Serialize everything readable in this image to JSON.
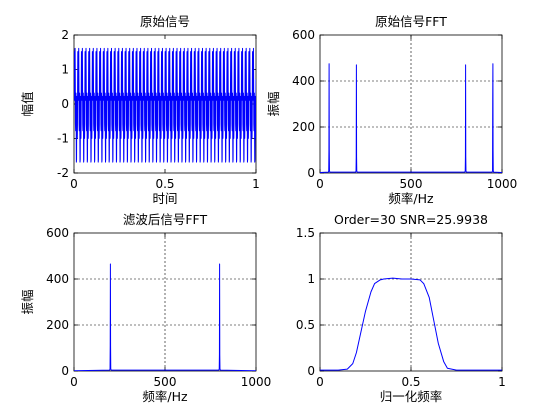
{
  "figure": {
    "background": "#ffffff",
    "line_color": "#0000ff"
  },
  "chart_data": [
    {
      "type": "line",
      "title": "原始信号",
      "xlabel": "时间",
      "ylabel": "幅值",
      "xlim": [
        0,
        1
      ],
      "ylim": [
        -2,
        2
      ],
      "xticks": [
        0,
        0.5,
        1
      ],
      "xtick_labels": [
        "0",
        "0.5",
        "1"
      ],
      "yticks": [
        -2,
        -1,
        0,
        1,
        2
      ],
      "ytick_labels": [
        "-2",
        "-1",
        "0",
        "1",
        "2"
      ],
      "grid": false,
      "signal": {
        "description_components": [
          {
            "frequency_hz": 50,
            "amplitude": 1
          },
          {
            "frequency_hz": 200,
            "amplitude": 1
          }
        ],
        "sample_rate_hz": 1000,
        "duration_s": 1
      }
    },
    {
      "type": "line",
      "title": "原始信号FFT",
      "xlabel": "频率/Hz",
      "ylabel": "振幅",
      "xlim": [
        0,
        1000
      ],
      "ylim": [
        0,
        600
      ],
      "xticks": [
        0,
        500,
        1000
      ],
      "xtick_labels": [
        "0",
        "500",
        "1000"
      ],
      "yticks": [
        0,
        200,
        400,
        600
      ],
      "ytick_labels": [
        "0",
        "200",
        "400",
        "600"
      ],
      "grid": true,
      "x": [
        0,
        46,
        48,
        49,
        50,
        51,
        52,
        54,
        196,
        198,
        199,
        200,
        201,
        202,
        204,
        796,
        798,
        799,
        800,
        801,
        802,
        804,
        946,
        948,
        949,
        950,
        951,
        952,
        954,
        1000
      ],
      "y": [
        2,
        4,
        10,
        100,
        475,
        100,
        10,
        4,
        4,
        10,
        70,
        470,
        70,
        10,
        4,
        4,
        10,
        70,
        470,
        70,
        10,
        4,
        4,
        10,
        320,
        475,
        100,
        10,
        4,
        2
      ]
    },
    {
      "type": "line",
      "title": "滤波后信号FFT",
      "xlabel": "频率/Hz",
      "ylabel": "振幅",
      "xlim": [
        0,
        1000
      ],
      "ylim": [
        0,
        600
      ],
      "xticks": [
        0,
        500,
        1000
      ],
      "xtick_labels": [
        "0",
        "500",
        "1000"
      ],
      "yticks": [
        0,
        200,
        400,
        600
      ],
      "ytick_labels": [
        "0",
        "200",
        "400",
        "600"
      ],
      "grid": true,
      "x": [
        0,
        196,
        198,
        199,
        200,
        201,
        202,
        204,
        796,
        798,
        799,
        800,
        801,
        802,
        804,
        1000
      ],
      "y": [
        1,
        4,
        10,
        110,
        465,
        110,
        10,
        4,
        4,
        10,
        70,
        465,
        70,
        10,
        4,
        1
      ]
    },
    {
      "type": "line",
      "title": "Order=30 SNR=25.9938",
      "xlabel": "归一化频率",
      "ylabel": "",
      "xlim": [
        0,
        1
      ],
      "ylim": [
        0,
        1.5
      ],
      "xticks": [
        0,
        0.5,
        1
      ],
      "xtick_labels": [
        "0",
        "0.5",
        "1"
      ],
      "yticks": [
        0,
        0.5,
        1,
        1.5
      ],
      "ytick_labels": [
        "0",
        "0.5",
        "1",
        "1.5"
      ],
      "grid": true,
      "x": [
        0,
        0.05,
        0.1,
        0.15,
        0.18,
        0.2,
        0.22,
        0.25,
        0.28,
        0.3,
        0.33,
        0.35,
        0.4,
        0.45,
        0.5,
        0.55,
        0.57,
        0.6,
        0.62,
        0.65,
        0.68,
        0.7,
        0.75,
        0.8,
        0.85,
        0.9,
        0.95,
        1
      ],
      "y": [
        0.01,
        0.01,
        0.01,
        0.02,
        0.08,
        0.2,
        0.38,
        0.65,
        0.86,
        0.95,
        0.99,
        1.0,
        1.01,
        1.0,
        1.0,
        0.99,
        0.95,
        0.8,
        0.6,
        0.3,
        0.1,
        0.03,
        0.01,
        0.01,
        0.01,
        0.01,
        0.01,
        0.01
      ]
    }
  ]
}
